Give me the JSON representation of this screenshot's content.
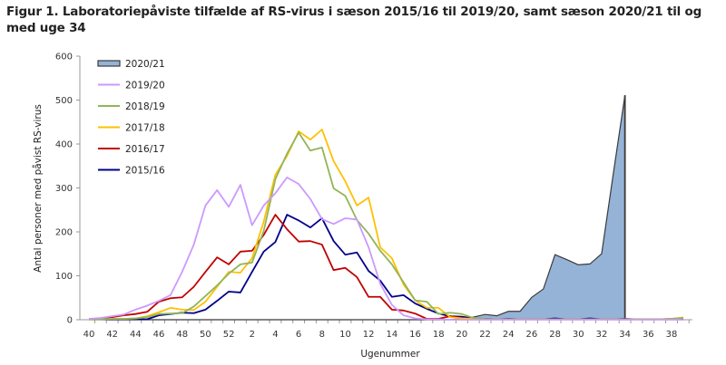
{
  "chart_data": {
    "type": "line",
    "title": "Figur 1. Laboratoriepåviste tilfælde af RS-virus i sæson 2015/16 til 2019/20, samt sæson 2020/21 til og med uge 34",
    "xlabel": "Ugenummer",
    "ylabel": "Antal personer med påvist RS-virus",
    "ylim": [
      0,
      600
    ],
    "yticks": [
      0,
      100,
      200,
      300,
      400,
      500,
      600
    ],
    "x": [
      40,
      41,
      42,
      43,
      44,
      45,
      46,
      47,
      48,
      49,
      50,
      51,
      52,
      1,
      2,
      3,
      4,
      5,
      6,
      7,
      8,
      9,
      10,
      11,
      12,
      13,
      14,
      15,
      16,
      17,
      18,
      19,
      20,
      21,
      22,
      23,
      24,
      25,
      26,
      27,
      28,
      29,
      30,
      31,
      32,
      33,
      34,
      35,
      36,
      37,
      38,
      39
    ],
    "xtick_labels": [
      "40",
      "42",
      "44",
      "46",
      "48",
      "50",
      "52",
      "2",
      "4",
      "6",
      "8",
      "10",
      "12",
      "14",
      "16",
      "18",
      "20",
      "22",
      "24",
      "26",
      "28",
      "30",
      "32",
      "34",
      "36",
      "38"
    ],
    "legend_position": "top-left",
    "series": [
      {
        "name": "2020/21",
        "style": "area",
        "color": "#95b3d7",
        "edge": "#3a3a3a",
        "values": [
          0,
          0,
          0,
          0,
          0,
          0,
          0,
          0,
          0,
          0,
          0,
          0,
          0,
          0,
          0,
          0,
          0,
          0,
          0,
          0,
          0,
          0,
          0,
          0,
          0,
          0,
          0,
          0,
          0,
          0,
          0,
          0,
          2,
          6,
          12,
          9,
          19,
          19,
          51,
          70,
          148,
          137,
          125,
          127,
          150,
          332,
          511
        ]
      },
      {
        "name": "2019/20",
        "style": "line",
        "color": "#cc99ff",
        "values": [
          2,
          4,
          8,
          12,
          23,
          32,
          43,
          56,
          109,
          171,
          260,
          295,
          257,
          307,
          215,
          260,
          288,
          324,
          309,
          275,
          229,
          218,
          231,
          228,
          165,
          82,
          34,
          10,
          3,
          1,
          1,
          0,
          0,
          0,
          0,
          0,
          0,
          0,
          0,
          0,
          0,
          0,
          0,
          0,
          0,
          0,
          0,
          0,
          0,
          0,
          0,
          0
        ]
      },
      {
        "name": "2018/19",
        "style": "line",
        "color": "#92b558",
        "values": [
          1,
          1,
          2,
          2,
          3,
          6,
          13,
          14,
          15,
          30,
          54,
          78,
          105,
          126,
          130,
          202,
          320,
          378,
          426,
          385,
          392,
          299,
          282,
          227,
          196,
          157,
          126,
          85,
          44,
          41,
          13,
          16,
          13,
          4,
          2,
          1,
          1,
          1,
          1,
          1,
          1,
          1,
          1,
          1,
          1,
          1,
          1,
          1,
          1,
          1,
          2,
          4
        ]
      },
      {
        "name": "2017/18",
        "style": "line",
        "color": "#ffc000",
        "values": [
          1,
          1,
          2,
          2,
          3,
          8,
          17,
          27,
          23,
          22,
          41,
          75,
          109,
          107,
          140,
          223,
          330,
          373,
          429,
          410,
          433,
          361,
          315,
          260,
          278,
          165,
          140,
          80,
          44,
          27,
          27,
          6,
          3,
          2,
          1,
          1,
          1,
          1,
          1,
          1,
          1,
          1,
          1,
          1,
          1,
          1,
          1,
          1,
          1,
          1,
          2,
          5
        ]
      },
      {
        "name": "2016/17",
        "style": "line",
        "color": "#c00000",
        "values": [
          2,
          2,
          6,
          10,
          13,
          18,
          41,
          49,
          51,
          75,
          109,
          142,
          126,
          155,
          157,
          193,
          239,
          206,
          178,
          179,
          171,
          113,
          118,
          97,
          52,
          52,
          23,
          21,
          14,
          2,
          2,
          8,
          4,
          2,
          1,
          1,
          1,
          1,
          1,
          1,
          1,
          1,
          1,
          1,
          1,
          1,
          1,
          1,
          1,
          1,
          2,
          4
        ]
      },
      {
        "name": "2015/16",
        "style": "line",
        "color": "#00008b",
        "values": [
          1,
          1,
          1,
          1,
          1,
          1,
          10,
          13,
          16,
          15,
          23,
          43,
          64,
          62,
          109,
          155,
          177,
          239,
          226,
          210,
          231,
          179,
          148,
          153,
          111,
          89,
          52,
          56,
          37,
          25,
          14,
          8,
          7,
          3,
          2,
          1,
          2,
          1,
          1,
          1,
          3,
          1,
          1,
          3,
          1,
          1,
          2,
          1,
          1,
          1,
          1,
          1
        ]
      }
    ]
  }
}
